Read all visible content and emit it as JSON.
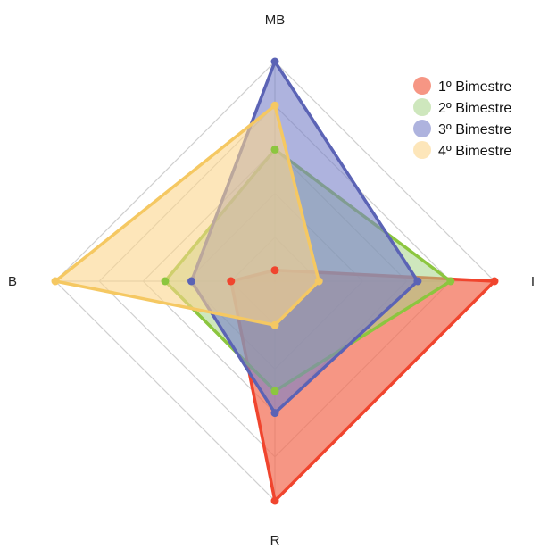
{
  "chart_data": {
    "type": "radar",
    "axes": [
      "MB",
      "I",
      "R",
      "B"
    ],
    "rmax": 10,
    "grid_levels": 5,
    "grid": true,
    "legend_position": "top-right",
    "series": [
      {
        "name": "1º Bimestre",
        "values": [
          0.5,
          10,
          10,
          2
        ],
        "color": "#f0452e",
        "fill": "rgba(242,110,84,0.72)"
      },
      {
        "name": "2º Bimestre",
        "values": [
          6,
          8,
          5,
          5
        ],
        "color": "#8cc63f",
        "fill": "rgba(165,212,135,0.55)"
      },
      {
        "name": "3º Bimestre",
        "values": [
          10,
          6.5,
          6,
          3.8
        ],
        "color": "#5b63b5",
        "fill": "rgba(120,128,200,0.6)"
      },
      {
        "name": "4º Bimestre",
        "values": [
          8,
          2,
          2,
          10
        ],
        "color": "#f5c862",
        "fill": "rgba(252,214,140,0.6)"
      }
    ]
  }
}
